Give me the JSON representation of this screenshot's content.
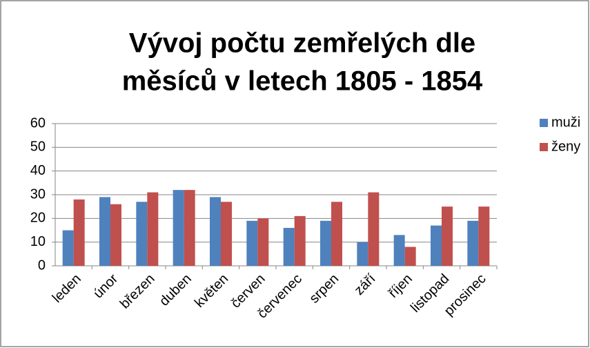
{
  "chart_data": {
    "type": "bar",
    "title": [
      "Vývoj počtu zemřelých dle",
      "měsíců v letech 1805 - 1854"
    ],
    "categories": [
      "leden",
      "únor",
      "březen",
      "duben",
      "květen",
      "červen",
      "červenec",
      "srpen",
      "září",
      "říjen",
      "listopad",
      "prosinec"
    ],
    "series": [
      {
        "name": "muži",
        "color": "#4f81bd",
        "values": [
          15,
          29,
          27,
          32,
          29,
          19,
          16,
          19,
          10,
          13,
          17,
          19
        ]
      },
      {
        "name": "ženy",
        "color": "#c0504d",
        "values": [
          28,
          26,
          31,
          32,
          27,
          20,
          21,
          27,
          31,
          8,
          25,
          25
        ]
      }
    ],
    "ylim": [
      0,
      60
    ],
    "yticks": [
      0,
      10,
      20,
      30,
      40,
      50,
      60
    ],
    "grid": true,
    "legend": "right"
  }
}
